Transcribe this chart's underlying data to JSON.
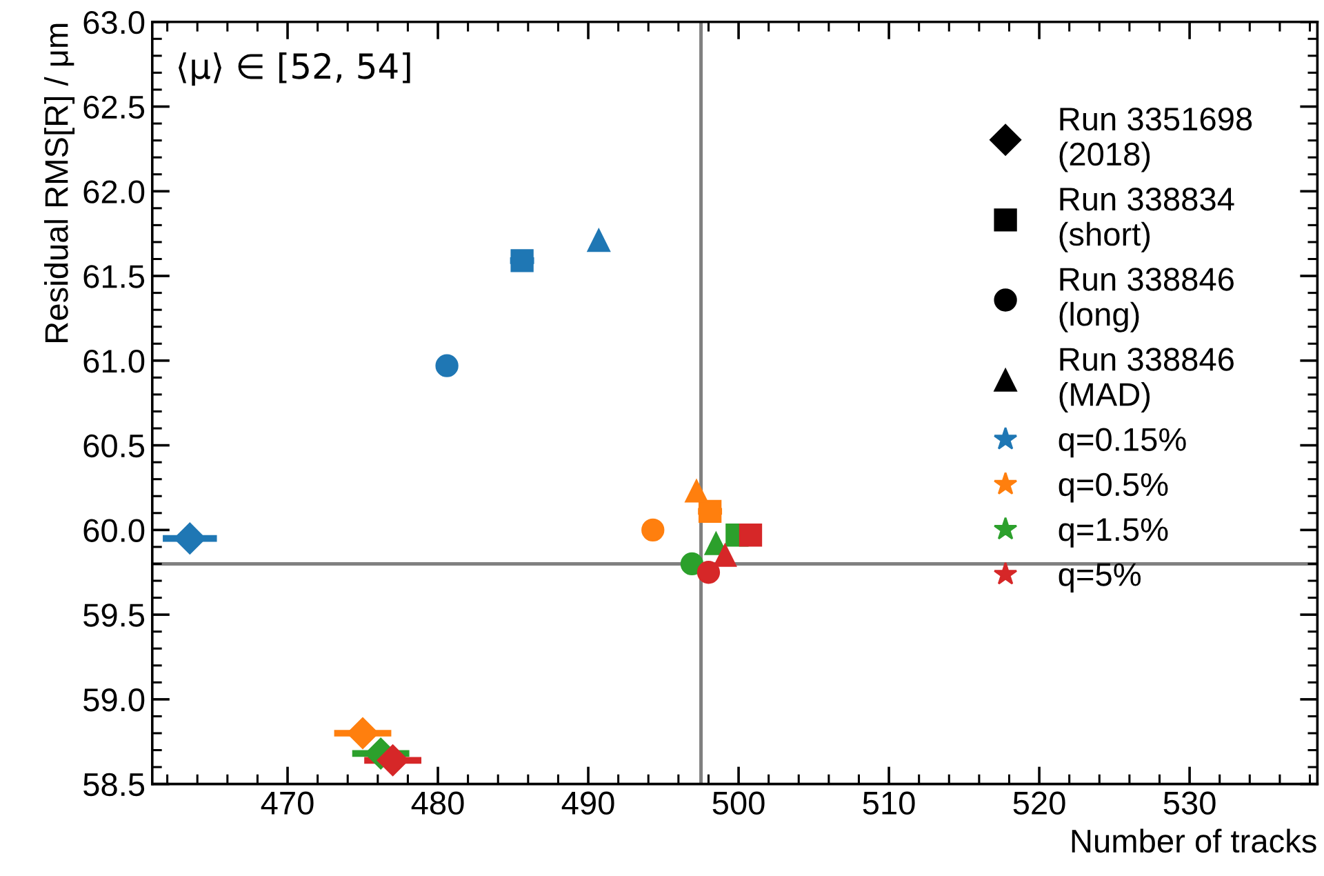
{
  "chart_data": {
    "type": "scatter",
    "xlabel": "Number of tracks",
    "ylabel": "Residual RMS[R] / μm",
    "annotations": [
      "⟨μ⟩ ∈ [52, 54]",
      "Run 3351698\n(2018)",
      "Run 338834\n(short)",
      "Run 338846\n(long)",
      "Run 338846\n(MAD)"
    ],
    "xlim": [
      461,
      538.5
    ],
    "xticks": [
      470,
      480,
      490,
      500,
      510,
      520,
      530
    ],
    "ylim": [
      58.5,
      63.0
    ],
    "yticks": [
      {
        "value": 58.5,
        "label": "58.5"
      },
      {
        "value": 59.0,
        "label": "59.0"
      },
      {
        "value": 59.5,
        "label": "59.5"
      },
      {
        "value": 60.0,
        "label": "60.0"
      },
      {
        "value": 60.5,
        "label": "60.5"
      },
      {
        "value": 61.0,
        "label": "61.0"
      },
      {
        "value": 61.5,
        "label": "61.5"
      },
      {
        "value": 62.0,
        "label": "62.0"
      },
      {
        "value": 62.5,
        "label": "62.5"
      },
      {
        "value": 63.0,
        "label": "63.0"
      }
    ],
    "grid": false,
    "legend": "right",
    "ref_lines": [
      {
        "axis": "x",
        "value": 497.5,
        "color": "#808080"
      },
      {
        "axis": "y",
        "value": 59.8,
        "color": "#808080"
      }
    ],
    "series": [
      {
        "name": "q=0.15%",
        "color": "#1f77b4",
        "x": [
          463.5,
          485.6,
          480.6,
          490.7
        ],
        "values": [
          59.95,
          61.59,
          60.97,
          61.71
        ],
        "xerrors": [
          1.8,
          0.8,
          null,
          null
        ]
      },
      {
        "name": "q=0.5%",
        "color": "#ff7f0e",
        "x": [
          475.0,
          498.1,
          494.3,
          497.2
        ],
        "values": [
          58.8,
          60.11,
          60.0,
          60.23
        ],
        "xerrors": [
          1.9,
          0.8,
          null,
          null
        ]
      },
      {
        "name": "q=1.5%",
        "color": "#2ca02c",
        "x": [
          476.2,
          499.9,
          496.9,
          498.5
        ],
        "values": [
          58.68,
          59.97,
          59.8,
          59.92
        ],
        "xerrors": [
          1.9,
          0.7,
          null,
          null
        ]
      },
      {
        "name": "q=5%",
        "color": "#d62728",
        "x": [
          477.0,
          500.8,
          498.0,
          499.1
        ],
        "values": [
          58.64,
          59.97,
          59.75,
          59.85
        ],
        "xerrors": [
          1.9,
          0.7,
          null,
          null
        ]
      }
    ]
  }
}
